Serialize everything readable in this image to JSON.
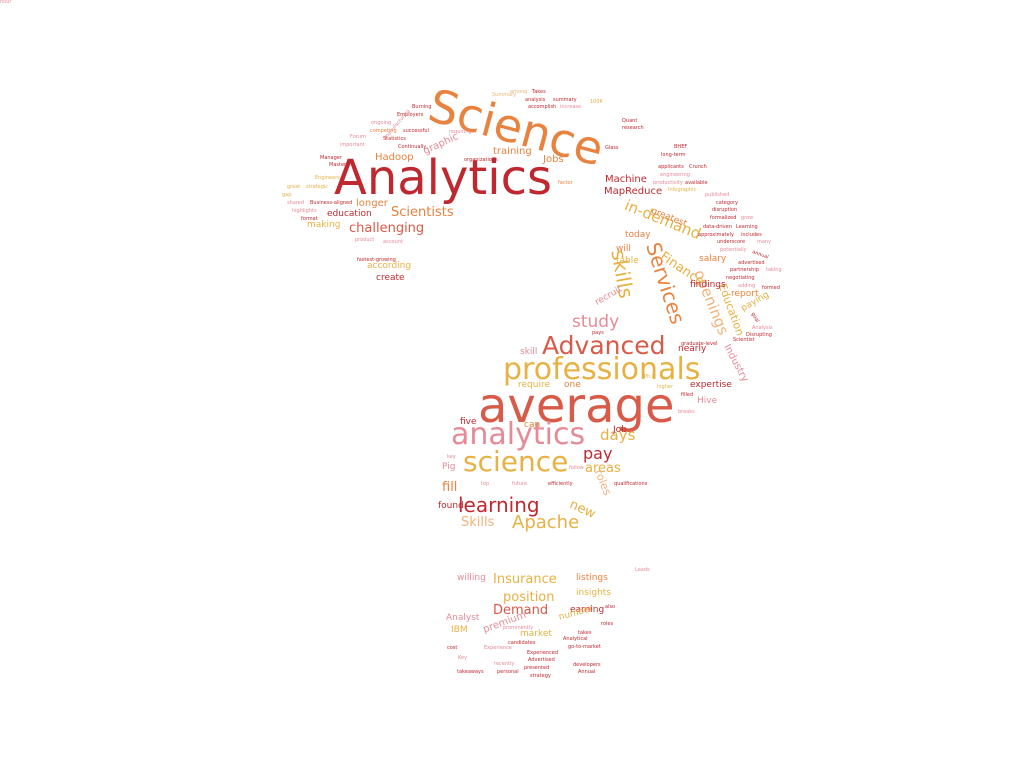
{
  "palette": {
    "dark_red": "#c0282f",
    "red": "#d85a48",
    "orange": "#e8823e",
    "gold": "#e7b143",
    "pink": "#e68a96",
    "peach": "#f0b27a"
  },
  "words": [
    {
      "text": "Analytics",
      "size": 48,
      "color": "#c0282f"
    },
    {
      "text": "Science",
      "size": 46,
      "color": "#e8823e"
    },
    {
      "text": "average",
      "size": 48,
      "color": "#d85a48"
    },
    {
      "text": "professionals",
      "size": 30,
      "color": "#e7b143"
    },
    {
      "text": "analytics",
      "size": 30,
      "color": "#e68a96"
    },
    {
      "text": "science",
      "size": 28,
      "color": "#e7b143"
    },
    {
      "text": "Advanced",
      "size": 25,
      "color": "#d85a48"
    },
    {
      "text": "learning",
      "size": 20,
      "color": "#c0282f"
    },
    {
      "text": "Apache",
      "size": 18,
      "color": "#e7b143"
    },
    {
      "text": "Services",
      "size": 20,
      "color": "#e8823e"
    },
    {
      "text": "skills",
      "size": 20,
      "color": "#e7b143"
    },
    {
      "text": "study",
      "size": 17,
      "color": "#e68a96"
    },
    {
      "text": "in-demand",
      "size": 15,
      "color": "#e7b143"
    },
    {
      "text": "openings",
      "size": 15,
      "color": "#f0b27a"
    },
    {
      "text": "Finance",
      "size": 13,
      "color": "#e7b143"
    },
    {
      "text": "Scientists",
      "size": 13,
      "color": "#e8823e"
    },
    {
      "text": "challenging",
      "size": 13,
      "color": "#d85a48"
    },
    {
      "text": "pay",
      "size": 16,
      "color": "#c0282f"
    },
    {
      "text": "days",
      "size": 15,
      "color": "#e7b143"
    },
    {
      "text": "areas",
      "size": 13,
      "color": "#e7b143"
    },
    {
      "text": "fill",
      "size": 13,
      "color": "#e8823e"
    },
    {
      "text": "new",
      "size": 13,
      "color": "#e7b143"
    },
    {
      "text": "Skills",
      "size": 13,
      "color": "#f0b27a"
    },
    {
      "text": "roles",
      "size": 11,
      "color": "#f0b27a"
    },
    {
      "text": "Education",
      "size": 11,
      "color": "#e7b143"
    },
    {
      "text": "Industry",
      "size": 10,
      "color": "#e68a96"
    },
    {
      "text": "Insurance",
      "size": 13,
      "color": "#e7b143"
    },
    {
      "text": "Demand",
      "size": 13,
      "color": "#d85a48"
    },
    {
      "text": "position",
      "size": 13,
      "color": "#e7b143"
    },
    {
      "text": "premium",
      "size": 10,
      "color": "#e68a96"
    },
    {
      "text": "graphic",
      "size": 10,
      "color": "#e68a96"
    },
    {
      "text": "training",
      "size": 10,
      "color": "#e8823e"
    },
    {
      "text": "Hadoop",
      "size": 10,
      "color": "#e8823e"
    },
    {
      "text": "Jobs",
      "size": 10,
      "color": "#e8823e"
    },
    {
      "text": "Machine",
      "size": 10,
      "color": "#c0282f"
    },
    {
      "text": "MapReduce",
      "size": 10,
      "color": "#c0282f"
    },
    {
      "text": "longer",
      "size": 10,
      "color": "#e8823e"
    },
    {
      "text": "education",
      "size": 9,
      "color": "#c0282f"
    },
    {
      "text": "making",
      "size": 9,
      "color": "#e7b143"
    },
    {
      "text": "according",
      "size": 9,
      "color": "#e7b143"
    },
    {
      "text": "create",
      "size": 9,
      "color": "#c0282f"
    },
    {
      "text": "greatest",
      "size": 9,
      "color": "#e8823e"
    },
    {
      "text": "today",
      "size": 9,
      "color": "#e8823e"
    },
    {
      "text": "will",
      "size": 9,
      "color": "#e8823e"
    },
    {
      "text": "table",
      "size": 9,
      "color": "#e7b143"
    },
    {
      "text": "salary",
      "size": 9,
      "color": "#e8823e"
    },
    {
      "text": "findings",
      "size": 9,
      "color": "#c0282f"
    },
    {
      "text": "report",
      "size": 9,
      "color": "#e8823e"
    },
    {
      "text": "paying",
      "size": 9,
      "color": "#e7b143"
    },
    {
      "text": "recruit",
      "size": 9,
      "color": "#e68a96"
    },
    {
      "text": "nearly",
      "size": 9,
      "color": "#c0282f"
    },
    {
      "text": "skill",
      "size": 9,
      "color": "#e68a96"
    },
    {
      "text": "require",
      "size": 9,
      "color": "#e7b143"
    },
    {
      "text": "one",
      "size": 9,
      "color": "#e8823e"
    },
    {
      "text": "expertise",
      "size": 9,
      "color": "#c0282f"
    },
    {
      "text": "Hive",
      "size": 9,
      "color": "#e68a96"
    },
    {
      "text": "five",
      "size": 9,
      "color": "#c0282f"
    },
    {
      "text": "can",
      "size": 9,
      "color": "#e8823e"
    },
    {
      "text": "Job",
      "size": 9,
      "color": "#c0282f"
    },
    {
      "text": "Pig",
      "size": 9,
      "color": "#e68a96"
    },
    {
      "text": "found",
      "size": 9,
      "color": "#c0282f"
    },
    {
      "text": "willing",
      "size": 9,
      "color": "#e68a96"
    },
    {
      "text": "listings",
      "size": 9,
      "color": "#e8823e"
    },
    {
      "text": "insights",
      "size": 9,
      "color": "#e7b143"
    },
    {
      "text": "earning",
      "size": 9,
      "color": "#c0282f"
    },
    {
      "text": "number",
      "size": 9,
      "color": "#e7b143"
    },
    {
      "text": "Analyst",
      "size": 9,
      "color": "#e68a96"
    },
    {
      "text": "IBM",
      "size": 9,
      "color": "#e7b143"
    },
    {
      "text": "market",
      "size": 9,
      "color": "#e7b143"
    },
    {
      "text": "Summary",
      "size": 5,
      "color": "#f0b27a"
    },
    {
      "text": "among",
      "size": 5,
      "color": "#f0b27a"
    },
    {
      "text": "Takes",
      "size": 5,
      "color": "#c0282f"
    },
    {
      "text": "analysis",
      "size": 5,
      "color": "#c0282f"
    },
    {
      "text": "summary",
      "size": 5,
      "color": "#c0282f"
    },
    {
      "text": "accomplish",
      "size": 5,
      "color": "#c0282f"
    },
    {
      "text": "increase",
      "size": 5,
      "color": "#e68a96"
    },
    {
      "text": "100K",
      "size": 5,
      "color": "#e7b143"
    },
    {
      "text": "Burning",
      "size": 5,
      "color": "#c0282f"
    },
    {
      "text": "Employers",
      "size": 5,
      "color": "#c0282f"
    },
    {
      "text": "ongoing",
      "size": 5,
      "color": "#e68a96"
    },
    {
      "text": "competing",
      "size": 5,
      "color": "#e8823e"
    },
    {
      "text": "successful",
      "size": 5,
      "color": "#c0282f"
    },
    {
      "text": "manufacturing",
      "size": 5,
      "color": "#e68a96"
    },
    {
      "text": "requiring",
      "size": 5,
      "color": "#e68a96"
    },
    {
      "text": "Forum",
      "size": 5,
      "color": "#e68a96"
    },
    {
      "text": "Statistics",
      "size": 5,
      "color": "#c0282f"
    },
    {
      "text": "important",
      "size": 5,
      "color": "#e68a96"
    },
    {
      "text": "Continually",
      "size": 5,
      "color": "#c0282f"
    },
    {
      "text": "organizations",
      "size": 5,
      "color": "#c0282f"
    },
    {
      "text": "Manager",
      "size": 5,
      "color": "#c0282f"
    },
    {
      "text": "Master's",
      "size": 5,
      "color": "#c0282f"
    },
    {
      "text": "Engineers",
      "size": 5,
      "color": "#e7b143"
    },
    {
      "text": "great",
      "size": 5,
      "color": "#e7b143"
    },
    {
      "text": "strategic",
      "size": 5,
      "color": "#e7b143"
    },
    {
      "text": "gap",
      "size": 5,
      "color": "#e7b143"
    },
    {
      "text": "shared",
      "size": 5,
      "color": "#e68a96"
    },
    {
      "text": "Business-aligned",
      "size": 5,
      "color": "#c0282f"
    },
    {
      "text": "highlights",
      "size": 5,
      "color": "#e68a96"
    },
    {
      "text": "format",
      "size": 5,
      "color": "#c0282f"
    },
    {
      "text": "product",
      "size": 5,
      "color": "#e68a96"
    },
    {
      "text": "account",
      "size": 5,
      "color": "#e68a96"
    },
    {
      "text": "fastest-growing",
      "size": 5,
      "color": "#c0282f"
    },
    {
      "text": "Quant",
      "size": 5,
      "color": "#c0282f"
    },
    {
      "text": "research",
      "size": 5,
      "color": "#c0282f"
    },
    {
      "text": "BHEF",
      "size": 5,
      "color": "#c0282f"
    },
    {
      "text": "Glass",
      "size": 5,
      "color": "#c0282f"
    },
    {
      "text": "long-term",
      "size": 5,
      "color": "#c0282f"
    },
    {
      "text": "applicants",
      "size": 5,
      "color": "#c0282f"
    },
    {
      "text": "Crunch",
      "size": 5,
      "color": "#c0282f"
    },
    {
      "text": "engineering",
      "size": 5,
      "color": "#e68a96"
    },
    {
      "text": "productivity",
      "size": 5,
      "color": "#e68a96"
    },
    {
      "text": "available",
      "size": 5,
      "color": "#c0282f"
    },
    {
      "text": "Infographic",
      "size": 5,
      "color": "#e7b143"
    },
    {
      "text": "published",
      "size": 5,
      "color": "#e68a96"
    },
    {
      "text": "factor",
      "size": 5,
      "color": "#e8823e"
    },
    {
      "text": "category",
      "size": 5,
      "color": "#c0282f"
    },
    {
      "text": "disruption",
      "size": 5,
      "color": "#c0282f"
    },
    {
      "text": "formalized",
      "size": 5,
      "color": "#c0282f"
    },
    {
      "text": "grow",
      "size": 5,
      "color": "#e68a96"
    },
    {
      "text": "data-driven",
      "size": 5,
      "color": "#c0282f"
    },
    {
      "text": "Learning",
      "size": 5,
      "color": "#c0282f"
    },
    {
      "text": "approximately",
      "size": 5,
      "color": "#c0282f"
    },
    {
      "text": "includes",
      "size": 5,
      "color": "#c0282f"
    },
    {
      "text": "underscore",
      "size": 5,
      "color": "#c0282f"
    },
    {
      "text": "many",
      "size": 5,
      "color": "#e68a96"
    },
    {
      "text": "potentially",
      "size": 5,
      "color": "#e68a96"
    },
    {
      "text": "annual",
      "size": 5,
      "color": "#c0282f"
    },
    {
      "text": "advertised",
      "size": 5,
      "color": "#c0282f"
    },
    {
      "text": "partnership",
      "size": 5,
      "color": "#c0282f"
    },
    {
      "text": "taking",
      "size": 5,
      "color": "#e68a96"
    },
    {
      "text": "negotiating",
      "size": 5,
      "color": "#c0282f"
    },
    {
      "text": "adding",
      "size": 5,
      "color": "#e68a96"
    },
    {
      "text": "formed",
      "size": 5,
      "color": "#c0282f"
    },
    {
      "text": "Analysis",
      "size": 5,
      "color": "#e68a96"
    },
    {
      "text": "Disrupting",
      "size": 5,
      "color": "#c0282f"
    },
    {
      "text": "goal",
      "size": 5,
      "color": "#c0282f"
    },
    {
      "text": "Scientist",
      "size": 5,
      "color": "#c0282f"
    },
    {
      "text": "pays",
      "size": 5,
      "color": "#c0282f"
    },
    {
      "text": "graduate-level",
      "size": 5,
      "color": "#c0282f"
    },
    {
      "text": "Ph.D",
      "size": 5,
      "color": "#e7b143"
    },
    {
      "text": "higher",
      "size": 5,
      "color": "#e7b143"
    },
    {
      "text": "filled",
      "size": 5,
      "color": "#c0282f"
    },
    {
      "text": "breaks",
      "size": 5,
      "color": "#e68a96"
    },
    {
      "text": "key",
      "size": 5,
      "color": "#e68a96"
    },
    {
      "text": "follow",
      "size": 5,
      "color": "#e68a96"
    },
    {
      "text": "top",
      "size": 5,
      "color": "#e68a96"
    },
    {
      "text": "future",
      "size": 5,
      "color": "#e68a96"
    },
    {
      "text": "efficiently",
      "size": 5,
      "color": "#c0282f"
    },
    {
      "text": "qualifications",
      "size": 5,
      "color": "#c0282f"
    },
    {
      "text": "cost",
      "size": 5,
      "color": "#c0282f"
    },
    {
      "text": "Experience",
      "size": 5,
      "color": "#e68a96"
    },
    {
      "text": "Experienced",
      "size": 5,
      "color": "#c0282f"
    },
    {
      "text": "candidates",
      "size": 5,
      "color": "#c0282f"
    },
    {
      "text": "go-to-market",
      "size": 5,
      "color": "#c0282f"
    },
    {
      "text": "Advertised",
      "size": 5,
      "color": "#c0282f"
    },
    {
      "text": "developers",
      "size": 5,
      "color": "#c0282f"
    },
    {
      "text": "recently",
      "size": 5,
      "color": "#e68a96"
    },
    {
      "text": "presented",
      "size": 5,
      "color": "#c0282f"
    },
    {
      "text": "takeaways",
      "size": 5,
      "color": "#c0282f"
    },
    {
      "text": "personal",
      "size": 5,
      "color": "#c0282f"
    },
    {
      "text": "strategy",
      "size": 5,
      "color": "#c0282f"
    },
    {
      "text": "Annual",
      "size": 5,
      "color": "#c0282f"
    },
    {
      "text": "Key",
      "size": 5,
      "color": "#e68a96"
    },
    {
      "text": "Analytical",
      "size": 5,
      "color": "#c0282f"
    },
    {
      "text": "prominently",
      "size": 5,
      "color": "#e68a96"
    },
    {
      "text": "Leads",
      "size": 5,
      "color": "#e68a96"
    },
    {
      "text": "roles",
      "size": 5,
      "color": "#c0282f"
    },
    {
      "text": "takes",
      "size": 5,
      "color": "#c0282f"
    },
    {
      "text": "also",
      "size": 5,
      "color": "#c0282f"
    },
    {
      "text": "hour",
      "size": 5,
      "color": "#e68a96"
    }
  ]
}
